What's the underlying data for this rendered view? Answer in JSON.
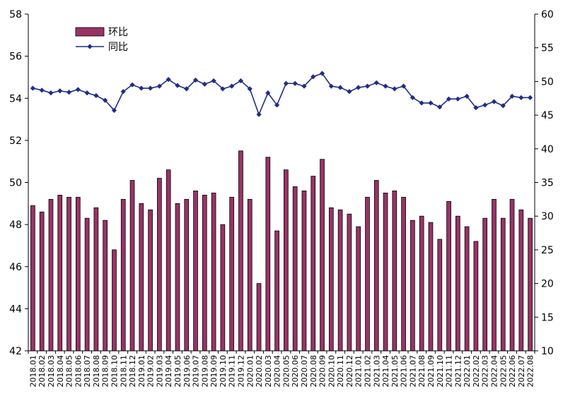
{
  "chart_data": {
    "type": "bar+line",
    "categories": [
      "2018.01",
      "2018.02",
      "2018.03",
      "2018.04",
      "2018.05",
      "2018.06",
      "2018.07",
      "2018.08",
      "2018.09",
      "2018.10",
      "2018.11",
      "2018.12",
      "2019.01",
      "2019.02",
      "2019.03",
      "2019.04",
      "2019.05",
      "2019.06",
      "2019.07",
      "2019.08",
      "2019.09",
      "2019.10",
      "2019.11",
      "2019.12",
      "2020.01",
      "2020.02",
      "2020.03",
      "2020.04",
      "2020.05",
      "2020.06",
      "2020.07",
      "2020.08",
      "2020.09",
      "2020.10",
      "2020.11",
      "2020.12",
      "2021.01",
      "2021.02",
      "2021.03",
      "2021.04",
      "2021.05",
      "2021.06",
      "2021.07",
      "2021.08",
      "2021.09",
      "2021.10",
      "2021.11",
      "2021.12",
      "2022.01",
      "2022.02",
      "2022.03",
      "2022.04",
      "2022.05",
      "2022.06",
      "2022.07",
      "2022.08"
    ],
    "series": [
      {
        "name": "环比",
        "type": "bar",
        "axis": "left",
        "color": "#993366",
        "values": [
          48.9,
          48.6,
          49.2,
          49.4,
          49.3,
          49.3,
          48.3,
          48.8,
          48.2,
          46.8,
          49.2,
          50.1,
          49.0,
          48.7,
          50.2,
          50.6,
          49.0,
          49.2,
          49.6,
          49.4,
          49.5,
          48.0,
          49.3,
          51.5,
          49.2,
          45.2,
          51.2,
          47.7,
          50.6,
          49.8,
          49.6,
          50.3,
          51.1,
          48.8,
          48.7,
          48.5,
          47.9,
          49.3,
          50.1,
          49.5,
          49.6,
          49.3,
          48.2,
          48.4,
          48.1,
          47.3,
          49.1,
          48.4,
          47.9,
          47.2,
          48.3,
          49.2,
          48.3,
          49.2,
          48.7,
          48.3
        ]
      },
      {
        "name": "同比",
        "type": "line",
        "axis": "right",
        "color": "#1F2D86",
        "values": [
          49.0,
          48.7,
          48.3,
          48.6,
          48.4,
          48.8,
          48.3,
          47.9,
          47.2,
          45.7,
          48.5,
          49.5,
          49.0,
          49.0,
          49.3,
          50.3,
          49.4,
          48.9,
          50.2,
          49.6,
          50.1,
          48.9,
          49.3,
          50.1,
          48.9,
          45.1,
          48.3,
          46.5,
          49.7,
          49.7,
          49.3,
          50.7,
          51.2,
          49.3,
          49.1,
          48.5,
          49.1,
          49.3,
          49.8,
          49.3,
          48.9,
          49.3,
          47.6,
          46.8,
          46.8,
          46.2,
          47.4,
          47.4,
          47.8,
          46.1,
          46.5,
          47.0,
          46.4,
          47.8,
          47.6,
          47.6
        ]
      }
    ],
    "y_left": {
      "min": 42,
      "max": 58,
      "ticks": [
        "42",
        "44",
        "46",
        "48",
        "50",
        "52",
        "54",
        "56",
        "58"
      ]
    },
    "y_right": {
      "min": 10,
      "max": 60,
      "ticks": [
        "10",
        "15",
        "20",
        "25",
        "30",
        "35",
        "40",
        "45",
        "50",
        "55",
        "60"
      ]
    },
    "legend": {
      "position": "top-left",
      "entries": [
        "环比",
        "同比"
      ]
    },
    "grid": false,
    "title": ""
  }
}
